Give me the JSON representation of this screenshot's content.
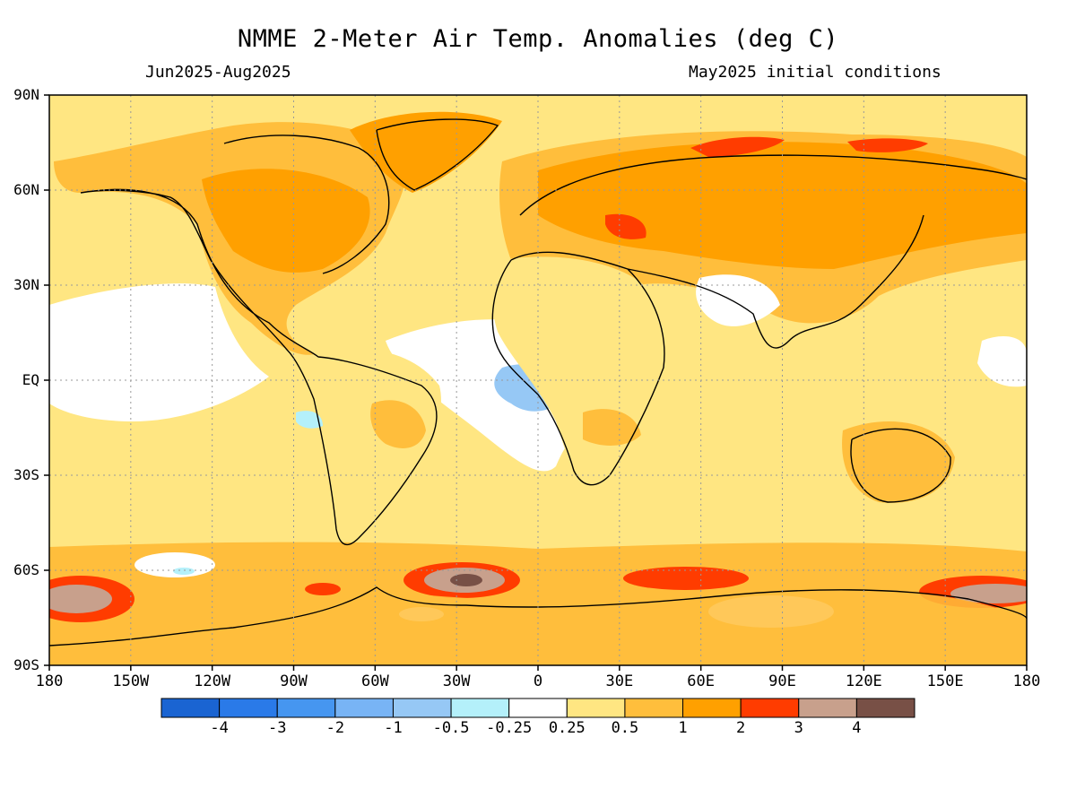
{
  "header": {
    "title": "NMME 2-Meter Air Temp. Anomalies (deg C)",
    "period": "Jun2025-Aug2025",
    "init": "May2025 initial conditions"
  },
  "axes": {
    "lat_labels": [
      {
        "text": "90N",
        "lat": 90
      },
      {
        "text": "60N",
        "lat": 60
      },
      {
        "text": "30N",
        "lat": 30
      },
      {
        "text": "EQ",
        "lat": 0
      },
      {
        "text": "30S",
        "lat": -30
      },
      {
        "text": "60S",
        "lat": -60
      },
      {
        "text": "90S",
        "lat": -90
      }
    ],
    "lon_labels": [
      {
        "text": "180",
        "lon": -180
      },
      {
        "text": "150W",
        "lon": -150
      },
      {
        "text": "120W",
        "lon": -120
      },
      {
        "text": "90W",
        "lon": -90
      },
      {
        "text": "60W",
        "lon": -60
      },
      {
        "text": "30W",
        "lon": -30
      },
      {
        "text": "0",
        "lon": 0
      },
      {
        "text": "30E",
        "lon": 30
      },
      {
        "text": "60E",
        "lon": 60
      },
      {
        "text": "90E",
        "lon": 90
      },
      {
        "text": "120E",
        "lon": 120
      },
      {
        "text": "150E",
        "lon": 150
      },
      {
        "text": "180",
        "lon": 180
      }
    ]
  },
  "colorbar": {
    "colors": [
      "#1a64d2",
      "#2a7ae8",
      "#4696f0",
      "#78b4f5",
      "#96c8f5",
      "#b4f0fa",
      "#ffffff",
      "#ffe682",
      "#ffbe3c",
      "#ffa000",
      "#ff3c00",
      "#c8a08c",
      "#785046"
    ],
    "labels": [
      "-4",
      "-3",
      "-2",
      "-1",
      "-0.5",
      "-0.25",
      "0.25",
      "0.5",
      "1",
      "2",
      "3",
      "4"
    ]
  },
  "map_colors": {
    "ocean_base": "#ffe682",
    "land": "#ffbe3c",
    "warm": "#ffa000",
    "hot": "#ff3c00",
    "very_hot": "#c8a08c",
    "extreme": "#785046",
    "neutral": "#ffffff",
    "cool": "#b4f0fa",
    "cooler": "#96c8f5"
  }
}
